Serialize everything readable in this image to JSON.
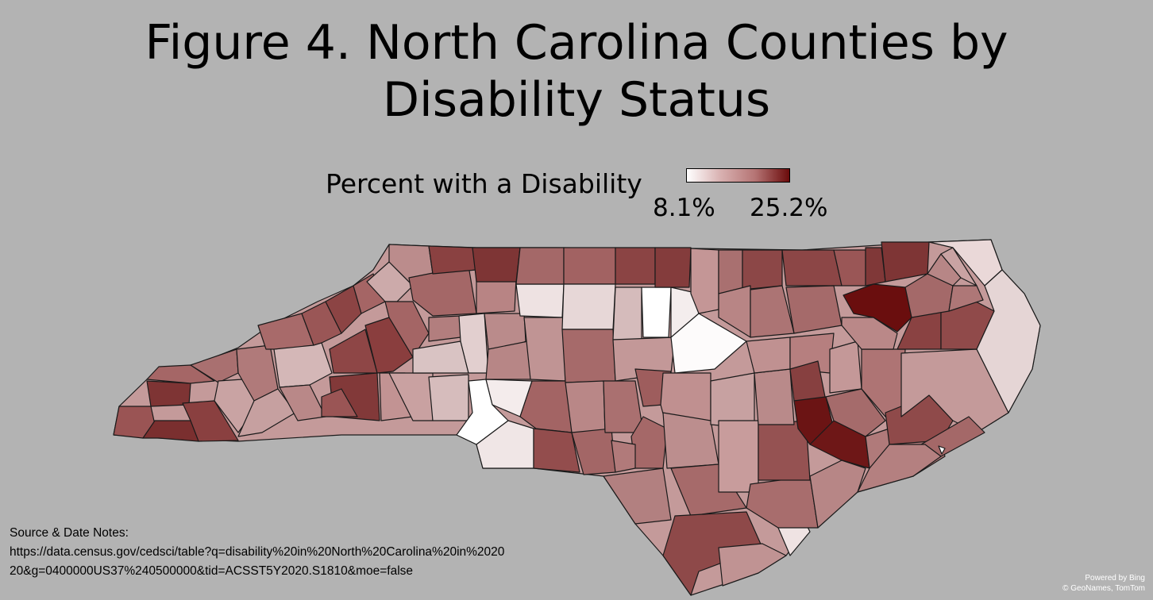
{
  "title": {
    "line1": "Figure 4. North Carolina Counties by",
    "line2": "Disability Status"
  },
  "legend": {
    "title": "Percent with a Disability",
    "min_label": "8.1%",
    "max_label": "25.2%",
    "min_color": "#ffffff",
    "max_color": "#6b0b0b"
  },
  "notes": {
    "heading": "Source & Date Notes:",
    "line1": "https://data.census.gov/cedsci/table?q=disability%20in%20North%20Carolina%20in%2020",
    "line2": "20&g=0400000US37%240500000&tid=ACSST5Y2020.S1810&moe=false"
  },
  "credit": {
    "line1": "Powered by Bing",
    "line2": "© GeoNames, TomTom"
  },
  "colors": {
    "background": "#b3b3b3",
    "border": "#1a1a1a"
  }
}
